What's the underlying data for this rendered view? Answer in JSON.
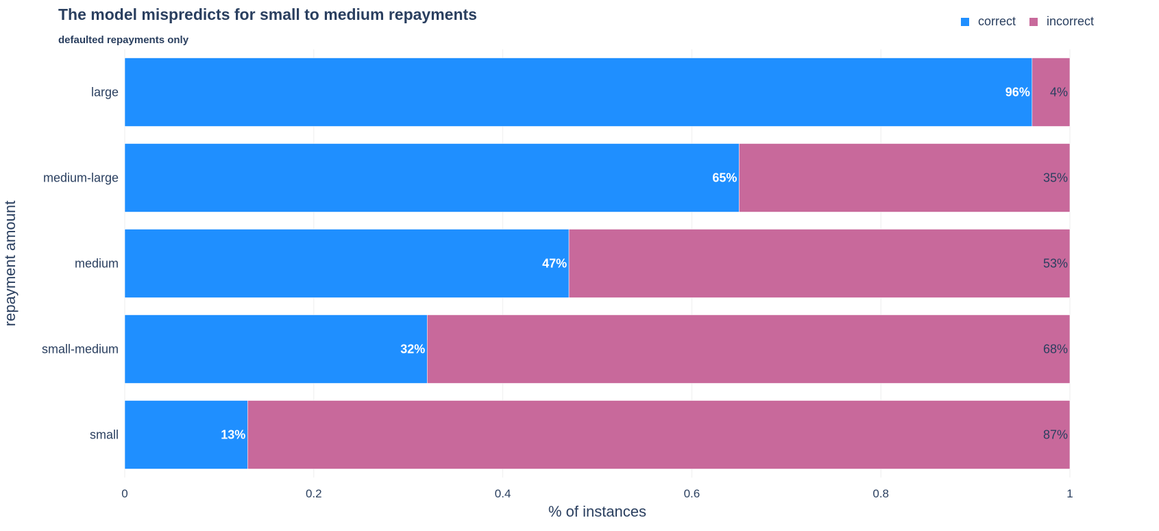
{
  "chart_data": {
    "type": "bar",
    "orientation": "horizontal",
    "stacked": true,
    "title": "The model mispredicts for small to medium repayments",
    "subtitle": "defaulted repayments only",
    "xlabel": "% of instances",
    "ylabel": "repayment amount",
    "xlim": [
      0,
      1
    ],
    "xticks": [
      "0",
      "0.2",
      "0.4",
      "0.6",
      "0.8",
      "1"
    ],
    "categories": [
      "large",
      "medium-large",
      "medium",
      "small-medium",
      "small"
    ],
    "series": [
      {
        "name": "correct",
        "color": "#1f8fff",
        "values": [
          0.96,
          0.65,
          0.47,
          0.32,
          0.13
        ],
        "labels": [
          "96%",
          "65%",
          "47%",
          "32%",
          "13%"
        ]
      },
      {
        "name": "incorrect",
        "color": "#c8699b",
        "values": [
          0.04,
          0.35,
          0.53,
          0.68,
          0.87
        ],
        "labels": [
          "4%",
          "35%",
          "53%",
          "68%",
          "87%"
        ]
      }
    ],
    "legend_position": "top-right",
    "grid": true
  }
}
